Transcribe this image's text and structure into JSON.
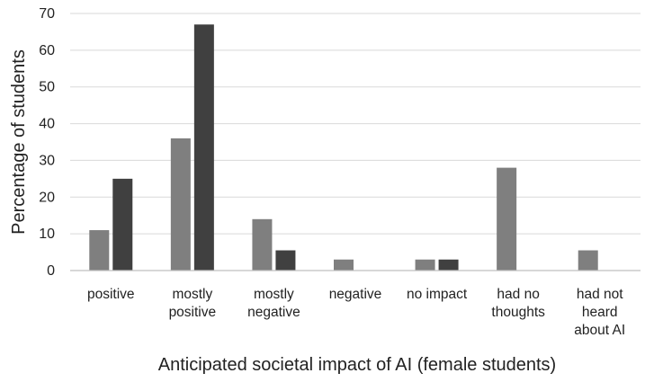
{
  "chart_data": {
    "type": "bar",
    "title": "",
    "xlabel": "Anticipated societal impact of AI (female students)",
    "ylabel": "Percentage of students",
    "ylim": [
      0,
      70
    ],
    "yticks": [
      0,
      10,
      20,
      30,
      40,
      50,
      60,
      70
    ],
    "grid": true,
    "legend": "none",
    "categories": [
      [
        "positive"
      ],
      [
        "mostly",
        "positive"
      ],
      [
        "mostly",
        "negative"
      ],
      [
        "negative"
      ],
      [
        "no impact"
      ],
      [
        "had no",
        "thoughts"
      ],
      [
        "had not",
        "heard",
        "about AI"
      ]
    ],
    "series": [
      {
        "color": "#7f7f7f",
        "values": [
          11,
          36,
          14,
          3,
          3,
          28,
          5.5
        ]
      },
      {
        "color": "#404040",
        "values": [
          25,
          67,
          5.5,
          0,
          3,
          0,
          0
        ]
      }
    ]
  }
}
